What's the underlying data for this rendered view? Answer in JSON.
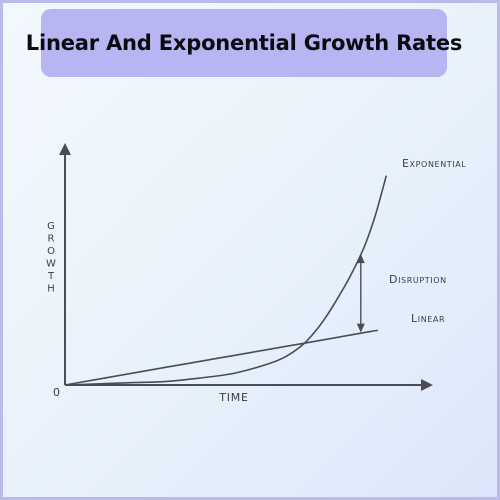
{
  "title": "Linear And Exponential Growth Rates",
  "chart_data": {
    "type": "line",
    "title": "Linear And Exponential Growth Rates",
    "xlabel": "TIME",
    "ylabel": "GROWTH",
    "origin_label": "0",
    "xlim": [
      0,
      10
    ],
    "ylim": [
      0,
      10
    ],
    "grid": false,
    "legend": "none",
    "series": [
      {
        "name": "Linear",
        "x": [
          0,
          1,
          2,
          3,
          4,
          5,
          6,
          7,
          8,
          9,
          9.2
        ],
        "y": [
          0,
          0.25,
          0.5,
          0.75,
          1.0,
          1.25,
          1.5,
          1.75,
          2.0,
          2.25,
          2.3
        ]
      },
      {
        "name": "Exponential",
        "x": [
          0,
          1,
          2,
          3,
          4,
          5,
          6,
          6.5,
          7,
          7.3,
          7.6,
          8.0,
          8.4,
          8.8,
          9.1,
          9.3,
          9.45
        ],
        "y": [
          0,
          0.05,
          0.1,
          0.15,
          0.3,
          0.5,
          0.9,
          1.2,
          1.7,
          2.15,
          2.7,
          3.6,
          4.6,
          5.8,
          7.0,
          8.0,
          8.8
        ]
      }
    ],
    "annotations": [
      {
        "label": "Disruption",
        "x": 8.7,
        "y_from": 2.2,
        "y_to": 5.5,
        "type": "double-arrow"
      }
    ],
    "colors": {
      "axis": "#4a4d55",
      "line": "#4a4d55"
    }
  }
}
